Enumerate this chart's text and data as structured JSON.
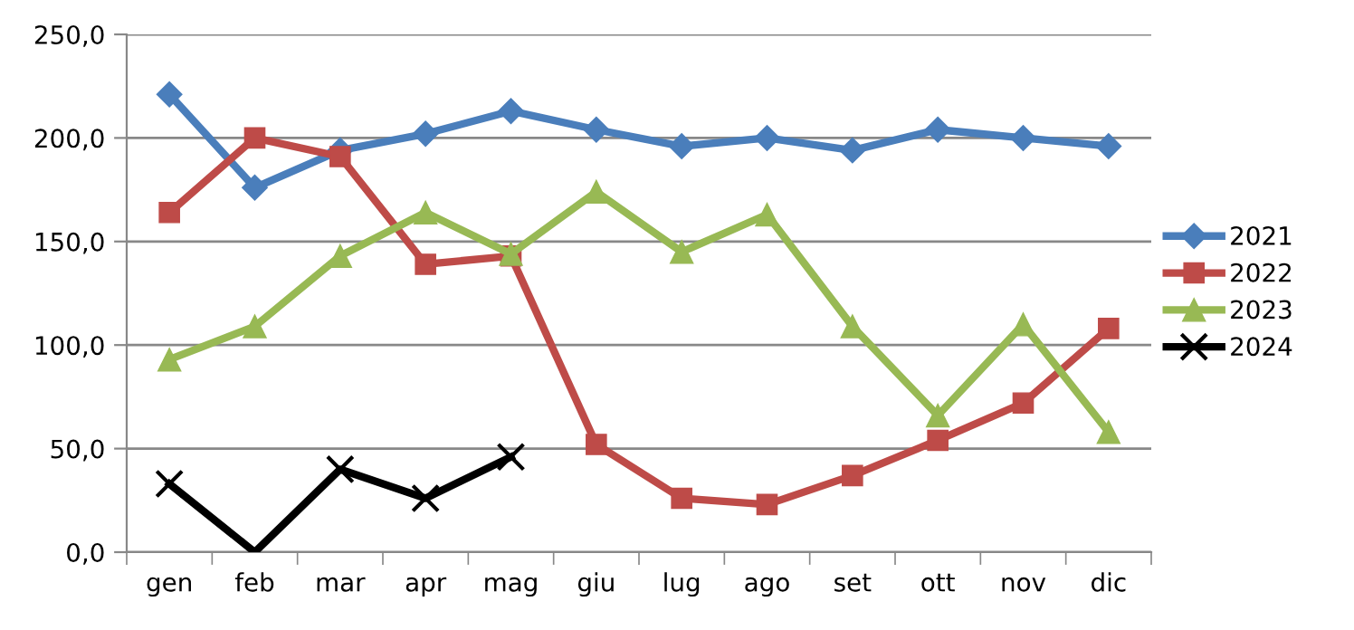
{
  "chart_data": {
    "type": "line",
    "categories": [
      "gen",
      "feb",
      "mar",
      "apr",
      "mag",
      "giu",
      "lug",
      "ago",
      "set",
      "ott",
      "nov",
      "dic"
    ],
    "series": [
      {
        "name": "2021",
        "color": "#4a7ebb",
        "marker": "diamond",
        "values": [
          221,
          176,
          194,
          202,
          213,
          204,
          196,
          200,
          194,
          204,
          200,
          196
        ]
      },
      {
        "name": "2022",
        "color": "#be4b48",
        "marker": "square",
        "values": [
          164,
          200,
          191,
          139,
          143,
          52,
          26,
          23,
          37,
          54,
          72,
          108
        ]
      },
      {
        "name": "2023",
        "color": "#98b954",
        "marker": "triangle",
        "values": [
          93,
          109,
          143,
          164,
          144,
          174,
          145,
          163,
          109,
          66,
          110,
          58
        ]
      },
      {
        "name": "2024",
        "color": "#000000",
        "marker": "cross",
        "values": [
          33,
          0,
          40,
          26,
          46,
          null,
          null,
          null,
          null,
          null,
          null,
          null
        ]
      }
    ],
    "ylim": [
      0,
      250
    ],
    "yticks": [
      {
        "value": 0,
        "label": "0,0"
      },
      {
        "value": 50,
        "label": "50,0"
      },
      {
        "value": 100,
        "label": "100,0"
      },
      {
        "value": 150,
        "label": "150,0"
      },
      {
        "value": 200,
        "label": "200,0"
      },
      {
        "value": 250,
        "label": "250,0"
      }
    ],
    "grid": "y",
    "legend": "right",
    "line_style": "solid"
  }
}
